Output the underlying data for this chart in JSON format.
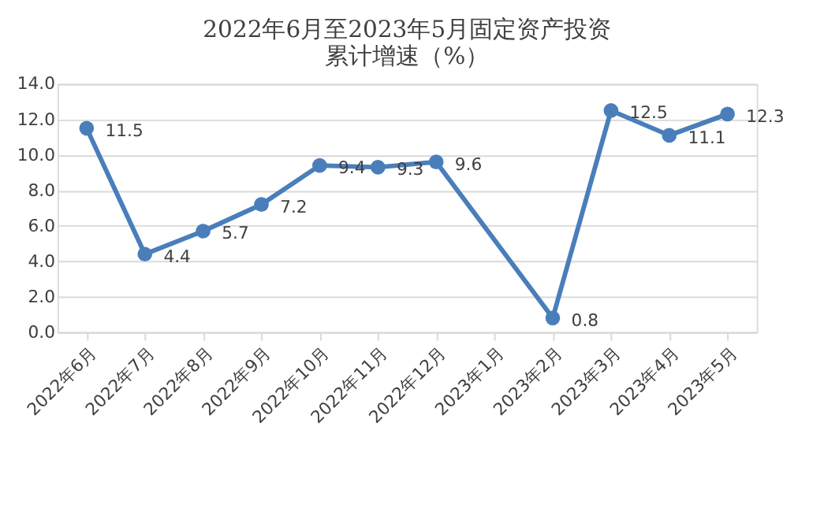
{
  "chart_data": {
    "type": "line",
    "title": [
      "2022年6月至2023年5月固定资产投资",
      "累计增速（%）"
    ],
    "categories": [
      "2022年6月",
      "2022年7月",
      "2022年8月",
      "2022年9月",
      "2022年10月",
      "2022年11月",
      "2022年12月",
      "2023年1月",
      "2023年2月",
      "2023年3月",
      "2023年4月",
      "2023年5月"
    ],
    "series": [
      {
        "color": "#4a7ebb",
        "values": [
          11.5,
          4.4,
          5.7,
          7.2,
          9.4,
          9.3,
          9.6,
          null,
          0.8,
          12.5,
          11.1,
          12.3
        ]
      }
    ],
    "ylim": [
      0,
      14
    ],
    "yticks": [
      {
        "value": 0,
        "label": "0.0"
      },
      {
        "value": 2,
        "label": "2.0"
      },
      {
        "value": 4,
        "label": "4.0"
      },
      {
        "value": 6,
        "label": "6.0"
      },
      {
        "value": 8,
        "label": "8.0"
      },
      {
        "value": 10,
        "label": "10.0"
      },
      {
        "value": 12,
        "label": "12.0"
      },
      {
        "value": 14,
        "label": "14.0"
      }
    ],
    "grid": "y",
    "marker": "circle",
    "data_labels": true,
    "legend": false
  }
}
